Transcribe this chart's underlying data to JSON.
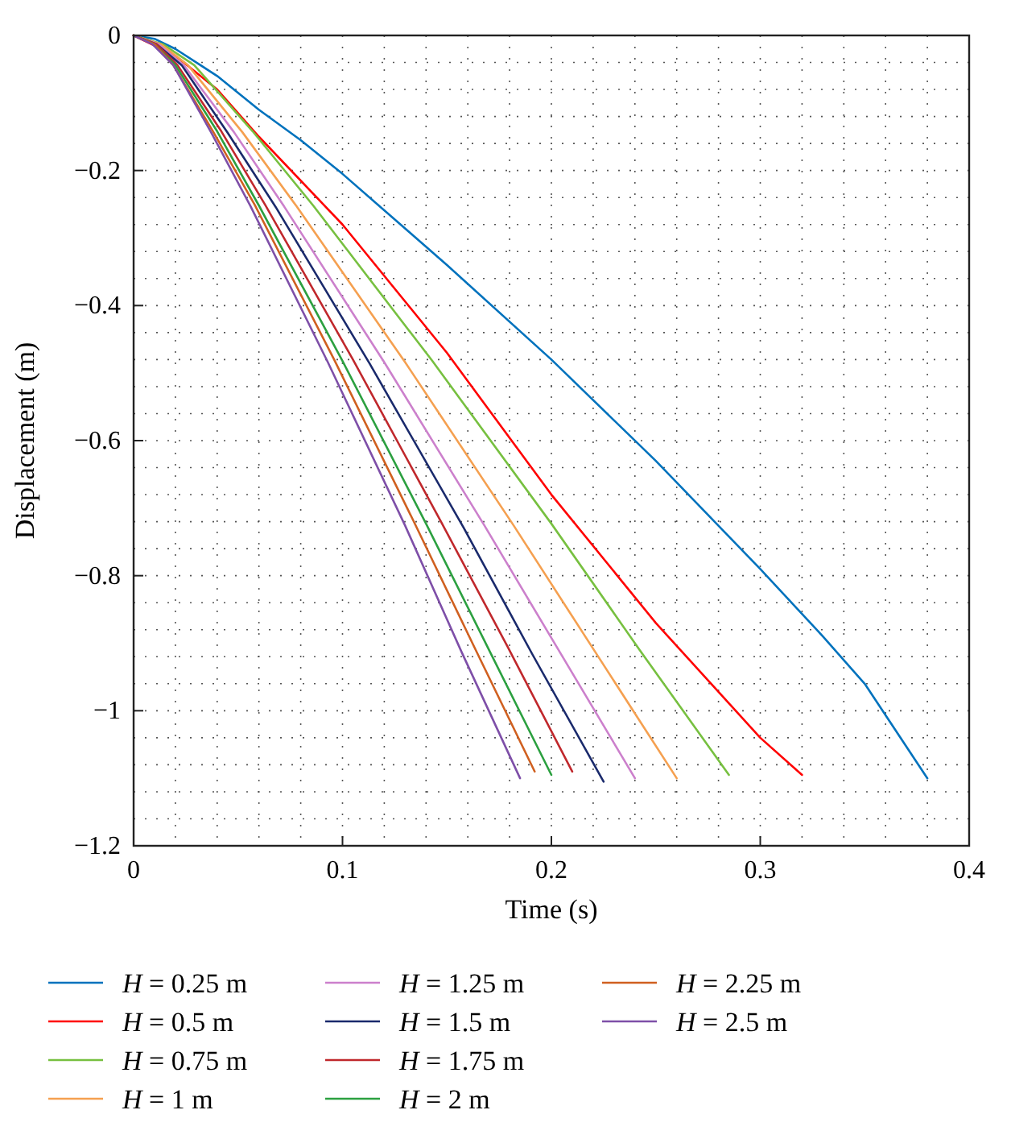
{
  "chart_data": {
    "type": "line",
    "xlabel": "Time (s)",
    "ylabel": "Displacement (m)",
    "xlim": [
      0,
      0.4
    ],
    "ylim": [
      -1.2,
      0
    ],
    "xticks": [
      0,
      {
        "value": 0.02,
        "label": null
      },
      {
        "value": 0.04,
        "label": null
      },
      {
        "value": 0.06,
        "label": null
      },
      {
        "value": 0.08,
        "label": null
      },
      0.1,
      {
        "value": 0.12,
        "label": null
      },
      {
        "value": 0.14,
        "label": null
      },
      {
        "value": 0.16,
        "label": null
      },
      {
        "value": 0.18,
        "label": null
      },
      0.2,
      {
        "value": 0.22,
        "label": null
      },
      {
        "value": 0.24,
        "label": null
      },
      {
        "value": 0.26,
        "label": null
      },
      {
        "value": 0.28,
        "label": null
      },
      0.3,
      {
        "value": 0.32,
        "label": null
      },
      {
        "value": 0.34,
        "label": null
      },
      {
        "value": 0.36,
        "label": null
      },
      {
        "value": 0.38,
        "label": null
      },
      0.4
    ],
    "yticks": [
      {
        "value": -1.2,
        "label": "−1.2"
      },
      {
        "value": -1.16,
        "label": null
      },
      {
        "value": -1.12,
        "label": null
      },
      {
        "value": -1.08,
        "label": null
      },
      {
        "value": -1.04,
        "label": null
      },
      {
        "value": -1,
        "label": "−1"
      },
      {
        "value": -0.96,
        "label": null
      },
      {
        "value": -0.92,
        "label": null
      },
      {
        "value": -0.88,
        "label": null
      },
      {
        "value": -0.84,
        "label": null
      },
      {
        "value": -0.8,
        "label": "−0.8"
      },
      {
        "value": -0.76,
        "label": null
      },
      {
        "value": -0.72,
        "label": null
      },
      {
        "value": -0.68,
        "label": null
      },
      {
        "value": -0.64,
        "label": null
      },
      {
        "value": -0.6,
        "label": "−0.6"
      },
      {
        "value": -0.56,
        "label": null
      },
      {
        "value": -0.52,
        "label": null
      },
      {
        "value": -0.48,
        "label": null
      },
      {
        "value": -0.44,
        "label": null
      },
      {
        "value": -0.4,
        "label": "−0.4"
      },
      {
        "value": -0.36,
        "label": null
      },
      {
        "value": -0.32,
        "label": null
      },
      {
        "value": -0.28,
        "label": null
      },
      {
        "value": -0.24,
        "label": null
      },
      {
        "value": -0.2,
        "label": "−0.2"
      },
      {
        "value": -0.16,
        "label": null
      },
      {
        "value": -0.12,
        "label": null
      },
      {
        "value": -0.08,
        "label": null
      },
      {
        "value": -0.04,
        "label": null
      },
      0
    ],
    "grid": true,
    "line_style": "solid",
    "legend": "bottom",
    "series": [
      {
        "name": "H = 0.25 m",
        "color": "#0072bd",
        "x": [
          0,
          0.01,
          0.02,
          0.04,
          0.06,
          0.08,
          0.1,
          0.15,
          0.2,
          0.25,
          0.3,
          0.33,
          0.35,
          0.365,
          0.38
        ],
        "values": [
          0,
          -0.005,
          -0.02,
          -0.06,
          -0.11,
          -0.155,
          -0.205,
          -0.34,
          -0.48,
          -0.63,
          -0.79,
          -0.89,
          -0.96,
          -1.03,
          -1.1
        ]
      },
      {
        "name": "H = 0.5 m",
        "color": "#ff0000",
        "x": [
          0,
          0.02,
          0.04,
          0.06,
          0.1,
          0.15,
          0.2,
          0.25,
          0.3,
          0.32
        ],
        "values": [
          0,
          -0.03,
          -0.08,
          -0.15,
          -0.28,
          -0.47,
          -0.68,
          -0.87,
          -1.04,
          -1.095
        ]
      },
      {
        "name": "H = 0.75 m",
        "color": "#77c040",
        "x": [
          0,
          0.014,
          0.029,
          0.057,
          0.086,
          0.143,
          0.2,
          0.242,
          0.285
        ],
        "values": [
          0,
          -0.013,
          -0.044,
          -0.142,
          -0.252,
          -0.482,
          -0.723,
          -0.909,
          -1.095
        ]
      },
      {
        "name": "H = 1 m",
        "color": "#f5a050",
        "x": [
          0,
          0.013,
          0.026,
          0.052,
          0.078,
          0.13,
          0.182,
          0.221,
          0.26
        ],
        "values": [
          0,
          -0.013,
          -0.044,
          -0.143,
          -0.253,
          -0.484,
          -0.726,
          -0.913,
          -1.1
        ]
      },
      {
        "name": "H = 1.25 m",
        "color": "#cc80cc",
        "x": [
          0,
          0.012,
          0.024,
          0.048,
          0.072,
          0.12,
          0.168,
          0.204,
          0.24
        ],
        "values": [
          0,
          -0.013,
          -0.044,
          -0.143,
          -0.253,
          -0.484,
          -0.726,
          -0.913,
          -1.1
        ]
      },
      {
        "name": "H = 1.5 m",
        "color": "#1a2a6c",
        "x": [
          0,
          0.011,
          0.023,
          0.045,
          0.068,
          0.113,
          0.158,
          0.191,
          0.225
        ],
        "values": [
          0,
          -0.013,
          -0.044,
          -0.144,
          -0.254,
          -0.486,
          -0.729,
          -0.917,
          -1.105
        ]
      },
      {
        "name": "H = 1.75 m",
        "color": "#c0282c",
        "x": [
          0,
          0.011,
          0.021,
          0.042,
          0.063,
          0.105,
          0.147,
          0.179,
          0.21
        ],
        "values": [
          0,
          -0.013,
          -0.044,
          -0.142,
          -0.251,
          -0.48,
          -0.719,
          -0.905,
          -1.09
        ]
      },
      {
        "name": "H = 2 m",
        "color": "#2ca040",
        "x": [
          0,
          0.01,
          0.02,
          0.04,
          0.06,
          0.1,
          0.14,
          0.17,
          0.2
        ],
        "values": [
          0,
          -0.013,
          -0.044,
          -0.142,
          -0.252,
          -0.482,
          -0.723,
          -0.909,
          -1.095
        ]
      },
      {
        "name": "H = 2.25 m",
        "color": "#d06020",
        "x": [
          0,
          0.01,
          0.019,
          0.038,
          0.058,
          0.096,
          0.134,
          0.163,
          0.192
        ],
        "values": [
          0,
          -0.013,
          -0.044,
          -0.142,
          -0.251,
          -0.48,
          -0.719,
          -0.905,
          -1.09
        ]
      },
      {
        "name": "H = 2.5 m",
        "color": "#7e4fa8",
        "x": [
          0,
          0.009,
          0.019,
          0.037,
          0.056,
          0.093,
          0.13,
          0.157,
          0.185
        ],
        "values": [
          0,
          -0.013,
          -0.044,
          -0.143,
          -0.253,
          -0.484,
          -0.726,
          -0.913,
          -1.1
        ]
      }
    ]
  }
}
